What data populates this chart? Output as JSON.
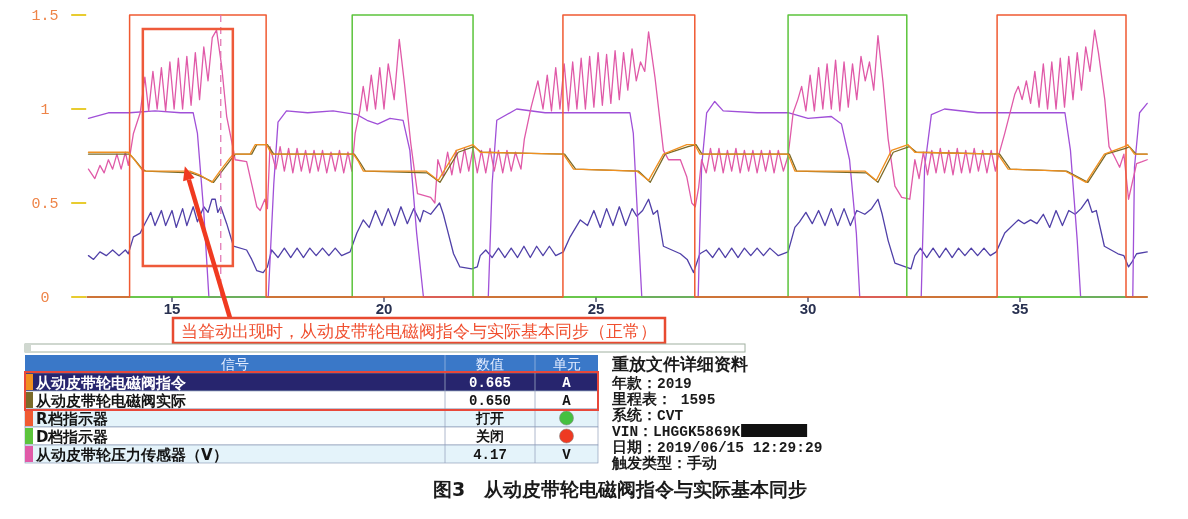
{
  "chart_data": {
    "type": "line",
    "title": "图3　从动皮带轮电磁阀指令与实际基本同步",
    "legend_title": "信号",
    "legend": "bottom",
    "xlim": [
      13,
      38
    ],
    "ylim": [
      0,
      1.5
    ],
    "xticks": [
      15,
      20,
      25,
      30,
      35
    ],
    "yticks": [
      0,
      0.5,
      1,
      1.5
    ],
    "series": [
      {
        "name": "从动皮带轮电磁阀指令",
        "color": "#f09020",
        "x": [
          13.03,
          13.97,
          14.08,
          14.25,
          14.32,
          15.42,
          15.65,
          15.94,
          16.13,
          16.37,
          16.45,
          16.84,
          16.96,
          17.23,
          17.35,
          19.28,
          19.4,
          19.51,
          20.99,
          21.28,
          21.71,
          22.1,
          22.27,
          24.23,
          24.47,
          25.96,
          26.24,
          26.59,
          27.14,
          27.33,
          27.45,
          29.53,
          29.69,
          31.34,
          31.61,
          31.97,
          32.36,
          32.52,
          34.48,
          34.72,
          36.06,
          36.56,
          36.99,
          37.46,
          37.54,
          37.7,
          38.0
        ],
        "values": [
          0.77,
          0.77,
          0.74,
          0.69,
          0.67,
          0.67,
          0.65,
          0.61,
          0.67,
          0.74,
          0.76,
          0.76,
          0.81,
          0.81,
          0.76,
          0.76,
          0.72,
          0.67,
          0.67,
          0.62,
          0.78,
          0.81,
          0.77,
          0.76,
          0.68,
          0.67,
          0.62,
          0.76,
          0.81,
          0.81,
          0.76,
          0.76,
          0.67,
          0.67,
          0.62,
          0.78,
          0.81,
          0.77,
          0.76,
          0.68,
          0.67,
          0.61,
          0.76,
          0.8,
          0.81,
          0.76,
          0.76
        ]
      },
      {
        "name": "从动皮带轮电磁阀实际",
        "color": "#7a6a28",
        "x": [
          13.03,
          14.0,
          14.12,
          14.3,
          14.38,
          15.45,
          15.7,
          15.98,
          16.18,
          16.42,
          16.5,
          16.88,
          17.0,
          17.25,
          17.4,
          19.3,
          19.45,
          19.56,
          21.02,
          21.32,
          21.75,
          22.12,
          22.3,
          24.26,
          24.52,
          26.0,
          26.28,
          26.63,
          27.17,
          27.36,
          27.5,
          29.56,
          29.73,
          31.38,
          31.65,
          32.01,
          32.39,
          32.56,
          34.52,
          34.77,
          36.1,
          36.6,
          37.03,
          37.49,
          37.58,
          37.74,
          38.0
        ],
        "values": [
          0.76,
          0.76,
          0.73,
          0.68,
          0.67,
          0.66,
          0.64,
          0.61,
          0.67,
          0.74,
          0.76,
          0.76,
          0.81,
          0.81,
          0.76,
          0.76,
          0.71,
          0.67,
          0.66,
          0.61,
          0.77,
          0.8,
          0.77,
          0.76,
          0.68,
          0.67,
          0.61,
          0.76,
          0.8,
          0.81,
          0.76,
          0.76,
          0.67,
          0.66,
          0.61,
          0.77,
          0.8,
          0.77,
          0.76,
          0.68,
          0.67,
          0.61,
          0.76,
          0.79,
          0.8,
          0.76,
          0.76
        ]
      },
      {
        "name": "R档指示器",
        "type": "step",
        "color": "#f05a32",
        "x": [
          13,
          14.0,
          17.22,
          24.22,
          27.33,
          34.46,
          37.5,
          38
        ],
        "values": [
          0,
          1.5,
          0,
          1.5,
          0,
          1.5,
          0,
          0
        ]
      },
      {
        "name": "D档指示器",
        "type": "step",
        "color": "#5cc43c",
        "x": [
          13,
          19.25,
          22.1,
          29.53,
          32.33,
          38
        ],
        "values": [
          0,
          1.5,
          0,
          1.5,
          0,
          0
        ]
      },
      {
        "name": "从动皮带轮压力传感器（V）",
        "color": "#e05aa8",
        "x": [
          13.03,
          13.18,
          13.3,
          13.4,
          13.5,
          13.6,
          13.7,
          13.8,
          13.9,
          13.97,
          14.09,
          14.25,
          14.36,
          14.45,
          14.55,
          14.65,
          14.75,
          14.85,
          14.95,
          15.05,
          15.15,
          15.25,
          15.35,
          15.45,
          15.55,
          15.65,
          15.75,
          15.85,
          15.95,
          16.05,
          16.17,
          16.29,
          16.45,
          16.49,
          16.76,
          16.88,
          17.0,
          17.08,
          17.19,
          17.25,
          17.31,
          17.45,
          17.55,
          17.65,
          17.75,
          17.85,
          17.95,
          18.05,
          18.15,
          18.25,
          18.35,
          18.45,
          18.55,
          18.65,
          18.75,
          18.85,
          18.95,
          19.05,
          19.15,
          19.24,
          19.32,
          19.43,
          19.51,
          19.6,
          19.7,
          19.8,
          19.9,
          20.0,
          20.1,
          20.24,
          20.36,
          20.48,
          20.63,
          20.79,
          21.1,
          21.2,
          21.27,
          21.4,
          21.5,
          21.6,
          21.7,
          21.8,
          21.9,
          22.0,
          22.1,
          22.2,
          22.3,
          22.4,
          22.5,
          22.6,
          22.7,
          22.8,
          22.9,
          23.0,
          23.1,
          23.23,
          23.31,
          23.47,
          23.63,
          23.75,
          23.85,
          23.95,
          24.05,
          24.15,
          24.25,
          24.35,
          24.45,
          24.55,
          24.65,
          24.75,
          24.85,
          24.95,
          25.05,
          25.15,
          25.25,
          25.35,
          25.45,
          25.55,
          25.65,
          25.75,
          25.85,
          25.95,
          26.05,
          26.15,
          26.24,
          26.39,
          26.59,
          26.71,
          26.99,
          27.14,
          27.26,
          27.34,
          27.42,
          27.49,
          27.6,
          27.7,
          27.8,
          27.9,
          28.0,
          28.1,
          28.2,
          28.3,
          28.4,
          28.5,
          28.6,
          28.7,
          28.8,
          28.9,
          29.0,
          29.1,
          29.2,
          29.3,
          29.42,
          29.53,
          29.65,
          29.76,
          29.85,
          29.95,
          30.05,
          30.15,
          30.25,
          30.35,
          30.45,
          30.55,
          30.65,
          30.75,
          30.85,
          30.95,
          31.05,
          31.15,
          31.25,
          31.35,
          31.45,
          31.55,
          31.65,
          31.77,
          31.89,
          32.05,
          32.21,
          32.4,
          32.48,
          32.52,
          32.62,
          32.72,
          32.82,
          32.92,
          33.02,
          33.12,
          33.22,
          33.32,
          33.42,
          33.52,
          33.62,
          33.72,
          33.82,
          33.92,
          34.02,
          34.12,
          34.22,
          34.32,
          34.42,
          34.48,
          34.64,
          34.88,
          34.96,
          35.05,
          35.15,
          35.25,
          35.35,
          35.45,
          35.55,
          35.65,
          35.75,
          35.85,
          35.95,
          36.05,
          36.15,
          36.25,
          36.35,
          36.45,
          36.55,
          36.65,
          36.76,
          36.85,
          37.0,
          37.1,
          37.22,
          37.35,
          37.45,
          37.56,
          37.64,
          37.75,
          37.88,
          38.0
        ],
        "values": [
          0.68,
          0.63,
          0.7,
          0.66,
          0.73,
          0.68,
          0.76,
          0.68,
          0.77,
          0.7,
          0.87,
          0.98,
          1.17,
          0.99,
          1.2,
          1.0,
          1.22,
          0.99,
          1.25,
          1.0,
          1.27,
          1.0,
          1.28,
          1.02,
          1.3,
          1.05,
          1.33,
          1.15,
          1.38,
          1.42,
          1.23,
          0.96,
          0.78,
          0.73,
          0.72,
          0.6,
          0.48,
          0.46,
          0.52,
          0.47,
          0.8,
          0.68,
          0.8,
          0.67,
          0.79,
          0.66,
          0.79,
          0.67,
          0.78,
          0.66,
          0.78,
          0.67,
          0.78,
          0.66,
          0.77,
          0.67,
          0.78,
          0.66,
          0.77,
          0.67,
          0.87,
          0.99,
          1.12,
          0.99,
          1.18,
          1.0,
          1.22,
          1.0,
          1.24,
          1.05,
          1.37,
          1.14,
          0.82,
          0.55,
          0.53,
          0.5,
          0.73,
          0.64,
          0.77,
          0.65,
          0.78,
          0.66,
          0.79,
          0.67,
          0.79,
          0.66,
          0.78,
          0.66,
          0.79,
          0.67,
          0.78,
          0.66,
          0.78,
          0.67,
          0.77,
          0.68,
          0.84,
          1.01,
          1.15,
          1.0,
          1.18,
          0.99,
          1.22,
          1.0,
          1.24,
          0.99,
          1.25,
          1.0,
          1.27,
          1.0,
          1.28,
          1.01,
          1.3,
          1.02,
          1.29,
          1.03,
          1.31,
          1.05,
          1.3,
          1.1,
          1.32,
          1.15,
          1.25,
          1.2,
          1.41,
          1.17,
          0.78,
          0.73,
          0.73,
          0.64,
          0.5,
          0.48,
          0.58,
          0.73,
          0.66,
          0.79,
          0.67,
          0.79,
          0.66,
          0.78,
          0.67,
          0.79,
          0.66,
          0.78,
          0.67,
          0.78,
          0.66,
          0.78,
          0.67,
          0.78,
          0.66,
          0.78,
          0.67,
          0.75,
          0.98,
          1.05,
          1.12,
          0.99,
          1.18,
          0.99,
          1.22,
          1.0,
          1.24,
          1.0,
          1.26,
          0.99,
          1.25,
          1.01,
          1.24,
          1.05,
          1.28,
          1.15,
          1.25,
          1.1,
          1.39,
          1.14,
          0.84,
          0.59,
          0.53,
          0.52,
          0.66,
          0.73,
          0.63,
          0.77,
          0.65,
          0.78,
          0.66,
          0.79,
          0.66,
          0.78,
          0.65,
          0.79,
          0.66,
          0.78,
          0.66,
          0.79,
          0.67,
          0.78,
          0.66,
          0.78,
          0.67,
          0.74,
          0.87,
          1.08,
          1.12,
          1.05,
          1.15,
          1.03,
          1.2,
          1.01,
          1.24,
          1.0,
          1.25,
          1.0,
          1.27,
          1.01,
          1.28,
          1.05,
          1.3,
          1.1,
          1.33,
          1.2,
          1.42,
          1.3,
          1.05,
          0.8,
          0.75,
          0.69,
          0.76,
          0.52,
          0.6,
          0.71,
          0.72,
          0.73
        ]
      },
      {
        "color": "#a050d8",
        "x": [
          13.03,
          13.5,
          14.0,
          14.6,
          15.2,
          15.5,
          15.6,
          15.75,
          15.87,
          17.27,
          17.4,
          17.5,
          17.7,
          18.2,
          18.8,
          19.36,
          19.6,
          19.85,
          20.14,
          20.45,
          20.61,
          20.77,
          20.93,
          22.46,
          22.55,
          22.66,
          23.13,
          23.8,
          24.5,
          25.2,
          25.8,
          25.88,
          26.0,
          26.08,
          27.41,
          27.49,
          27.61,
          27.8,
          28.0,
          28.8,
          29.55,
          30.0,
          30.55,
          30.79,
          30.98,
          31.14,
          31.22,
          32.67,
          32.75,
          32.91,
          33.22,
          34.0,
          35.0,
          36.06,
          36.19,
          36.35,
          36.43,
          37.66,
          37.7,
          37.82,
          38.0
        ],
        "values": [
          0.95,
          0.98,
          0.98,
          0.99,
          0.98,
          0.98,
          0.87,
          0.45,
          0,
          0,
          0.6,
          0.93,
          0.99,
          0.98,
          0.99,
          0.97,
          0.94,
          0.92,
          0.95,
          0.94,
          0.78,
          0.34,
          0,
          0,
          0.6,
          0.94,
          1.0,
          0.98,
          0.98,
          0.98,
          0.98,
          0.87,
          0.34,
          0,
          0,
          0.69,
          0.98,
          1.04,
          0.99,
          0.98,
          0.98,
          0.95,
          0.96,
          0.92,
          0.73,
          0.34,
          0,
          0,
          0.69,
          0.97,
          1.0,
          0.98,
          0.98,
          0.98,
          0.78,
          0.3,
          0,
          0,
          0.69,
          0.98,
          1.03
        ]
      },
      {
        "color": "#5040a8",
        "x": [
          13.03,
          13.15,
          13.3,
          13.45,
          13.6,
          13.75,
          13.9,
          13.97,
          14.09,
          14.25,
          14.36,
          14.5,
          14.6,
          14.75,
          14.85,
          15.0,
          15.1,
          15.25,
          15.35,
          15.5,
          15.6,
          15.75,
          15.85,
          15.94,
          16.02,
          16.08,
          16.15,
          16.29,
          16.45,
          16.76,
          16.88,
          17.0,
          17.15,
          17.25,
          17.35,
          17.5,
          17.65,
          17.8,
          17.95,
          18.1,
          18.25,
          18.4,
          18.55,
          18.7,
          18.85,
          19.0,
          19.2,
          19.36,
          19.51,
          19.65,
          19.8,
          19.95,
          20.1,
          20.25,
          20.4,
          20.55,
          20.7,
          20.85,
          20.93,
          21.1,
          21.31,
          21.4,
          21.48,
          21.64,
          21.79,
          22.07,
          22.2,
          22.27,
          22.4,
          22.55,
          22.7,
          22.85,
          23.0,
          23.15,
          23.3,
          23.45,
          23.6,
          23.75,
          23.9,
          24.05,
          24.23,
          24.39,
          24.63,
          24.8,
          24.95,
          25.1,
          25.25,
          25.4,
          25.55,
          25.7,
          25.85,
          25.96,
          26.1,
          26.24,
          26.35,
          26.45,
          26.59,
          26.99,
          27.15,
          27.3,
          27.45,
          27.6,
          27.75,
          27.9,
          28.05,
          28.2,
          28.35,
          28.5,
          28.65,
          28.8,
          28.95,
          29.1,
          29.3,
          29.53,
          29.69,
          29.8,
          29.95,
          30.1,
          30.25,
          30.4,
          30.55,
          30.7,
          30.85,
          31.0,
          31.15,
          31.34,
          31.5,
          31.65,
          31.75,
          31.89,
          32.05,
          32.43,
          32.52,
          32.65,
          32.8,
          32.95,
          33.1,
          33.25,
          33.4,
          33.55,
          33.7,
          33.85,
          34.0,
          34.15,
          34.3,
          34.44,
          34.64,
          34.96,
          35.1,
          35.25,
          35.4,
          35.55,
          35.7,
          35.85,
          36.0,
          36.15,
          36.3,
          36.44,
          36.6,
          36.7,
          36.8,
          36.99,
          37.31,
          37.45,
          37.56,
          37.65,
          37.75,
          38.0
        ],
        "values": [
          0.22,
          0.2,
          0.24,
          0.22,
          0.25,
          0.22,
          0.25,
          0.23,
          0.32,
          0.34,
          0.39,
          0.45,
          0.38,
          0.46,
          0.38,
          0.46,
          0.37,
          0.47,
          0.38,
          0.48,
          0.4,
          0.48,
          0.45,
          0.52,
          0.52,
          0.45,
          0.48,
          0.39,
          0.27,
          0.25,
          0.2,
          0.14,
          0.13,
          0.16,
          0.25,
          0.21,
          0.26,
          0.21,
          0.26,
          0.21,
          0.26,
          0.22,
          0.26,
          0.22,
          0.26,
          0.22,
          0.24,
          0.34,
          0.41,
          0.37,
          0.46,
          0.38,
          0.47,
          0.38,
          0.48,
          0.39,
          0.47,
          0.4,
          0.46,
          0.44,
          0.5,
          0.44,
          0.37,
          0.23,
          0.16,
          0.15,
          0.16,
          0.22,
          0.25,
          0.21,
          0.26,
          0.21,
          0.26,
          0.21,
          0.27,
          0.21,
          0.27,
          0.22,
          0.27,
          0.22,
          0.24,
          0.32,
          0.41,
          0.38,
          0.46,
          0.37,
          0.47,
          0.38,
          0.48,
          0.38,
          0.47,
          0.43,
          0.46,
          0.52,
          0.44,
          0.46,
          0.27,
          0.23,
          0.2,
          0.13,
          0.23,
          0.25,
          0.21,
          0.26,
          0.21,
          0.26,
          0.21,
          0.26,
          0.22,
          0.26,
          0.22,
          0.26,
          0.22,
          0.24,
          0.37,
          0.4,
          0.45,
          0.39,
          0.46,
          0.38,
          0.47,
          0.38,
          0.47,
          0.38,
          0.46,
          0.44,
          0.47,
          0.52,
          0.44,
          0.3,
          0.18,
          0.15,
          0.22,
          0.26,
          0.21,
          0.26,
          0.21,
          0.26,
          0.21,
          0.26,
          0.22,
          0.26,
          0.22,
          0.26,
          0.22,
          0.24,
          0.34,
          0.41,
          0.39,
          0.41,
          0.39,
          0.44,
          0.37,
          0.46,
          0.38,
          0.46,
          0.44,
          0.47,
          0.52,
          0.45,
          0.46,
          0.27,
          0.23,
          0.22,
          0.16,
          0.19,
          0.23,
          0.24
        ]
      }
    ],
    "ref_lines": [
      {
        "axis": "x",
        "value": 16.15,
        "color": "#e070b0",
        "line_style": "dashed"
      }
    ],
    "annotations": [
      {
        "text": "当耸动出现时，从动皮带轮电磁阀指令与实际基本同步（正常）",
        "x": 15.35,
        "y": 0.66
      },
      "数值",
      "单元",
      "0.665",
      "0.650",
      "打开",
      "关闭",
      "4.17",
      "A",
      "A",
      "V",
      "重放文件详细资料",
      "年款：2019",
      "里程表： 1595",
      "系统：CVT",
      "VIN：LHGGK5869K",
      "日期：2019/06/15 12:29:29",
      "触发类型：手动"
    ]
  }
}
